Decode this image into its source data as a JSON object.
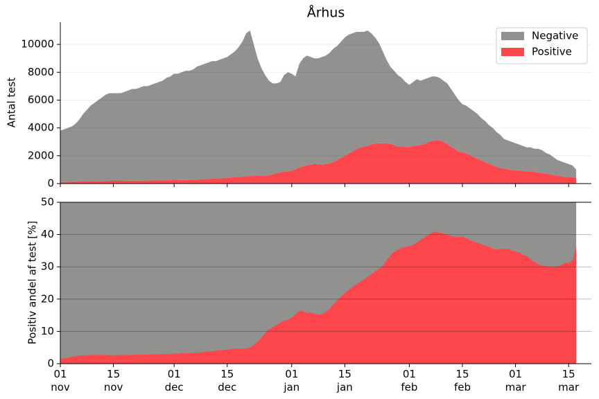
{
  "chart_data": [
    {
      "type": "area",
      "stacked": true,
      "title": "Århus",
      "ylabel": "Antal test",
      "ylim": [
        0,
        11600
      ],
      "yticks": [
        0,
        2000,
        4000,
        6000,
        8000,
        10000
      ],
      "grid": true,
      "legend": "upper right",
      "series": [
        {
          "name": "Negative",
          "color": "#91928f",
          "values": [
            3700,
            3790,
            3880,
            3970,
            4160,
            4450,
            4840,
            5130,
            5420,
            5620,
            5810,
            6010,
            6210,
            6300,
            6300,
            6300,
            6300,
            6400,
            6490,
            6590,
            6590,
            6690,
            6780,
            6780,
            6880,
            6970,
            7070,
            7170,
            7360,
            7460,
            7650,
            7650,
            7740,
            7840,
            7830,
            7920,
            8110,
            8200,
            8280,
            8370,
            8450,
            8440,
            8520,
            8600,
            8680,
            8860,
            9040,
            9320,
            9700,
            10280,
            10460,
            9450,
            8450,
            7750,
            7240,
            6800,
            6520,
            6460,
            6500,
            6950,
            7120,
            6960,
            6680,
            7450,
            7750,
            7880,
            7720,
            7580,
            7600,
            7720,
            7800,
            7940,
            8140,
            8200,
            8350,
            8500,
            8550,
            8500,
            8450,
            8320,
            8250,
            8280,
            7980,
            7620,
            7200,
            6600,
            6020,
            5530,
            5350,
            5150,
            4920,
            4650,
            4480,
            4600,
            4750,
            4640,
            4650,
            4620,
            4650,
            4580,
            4500,
            4400,
            4350,
            4150,
            3920,
            3700,
            3450,
            3420,
            3350,
            3300,
            3220,
            3050,
            2950,
            2780,
            2700,
            2500,
            2380,
            2120,
            2070,
            2020,
            1950,
            1870,
            1790,
            1720,
            1740,
            1660,
            1700,
            1640,
            1480,
            1420,
            1280,
            1130,
            1080,
            1010,
            920,
            840,
            620
          ]
        },
        {
          "name": "Positive",
          "color": "#fe474c",
          "values": [
            100,
            110,
            120,
            130,
            140,
            150,
            160,
            170,
            180,
            180,
            190,
            190,
            190,
            200,
            200,
            200,
            200,
            200,
            210,
            210,
            210,
            210,
            220,
            220,
            220,
            230,
            230,
            230,
            240,
            240,
            250,
            250,
            260,
            260,
            270,
            280,
            290,
            300,
            320,
            330,
            350,
            360,
            380,
            400,
            420,
            440,
            460,
            480,
            500,
            520,
            540,
            550,
            550,
            550,
            560,
            600,
            680,
            740,
            800,
            850,
            880,
            940,
            1020,
            1150,
            1250,
            1320,
            1380,
            1420,
            1400,
            1380,
            1400,
            1460,
            1560,
            1700,
            1850,
            2000,
            2150,
            2300,
            2450,
            2580,
            2650,
            2720,
            2820,
            2880,
            2900,
            2900,
            2880,
            2870,
            2750,
            2650,
            2680,
            2650,
            2620,
            2700,
            2750,
            2760,
            2850,
            2980,
            3050,
            3120,
            3100,
            3000,
            2850,
            2650,
            2480,
            2300,
            2250,
            2180,
            2050,
            1900,
            1780,
            1650,
            1550,
            1420,
            1300,
            1200,
            1120,
            1080,
            1030,
            980,
            950,
            930,
            910,
            880,
            860,
            840,
            800,
            760,
            720,
            680,
            620,
            570,
            520,
            490,
            480,
            460,
            380
          ]
        }
      ]
    },
    {
      "type": "area",
      "ylabel": "Positiv andel af test [%]",
      "ylim": [
        0,
        50
      ],
      "yticks": [
        0,
        10,
        20,
        30,
        40,
        50
      ],
      "grid": true,
      "categories": [
        "01 nov",
        null,
        null,
        null,
        null,
        null,
        null,
        null,
        null,
        null,
        null,
        null,
        null,
        null,
        "15 nov",
        null,
        null,
        null,
        null,
        null,
        null,
        null,
        null,
        null,
        null,
        null,
        null,
        null,
        null,
        null,
        "01 dec",
        null,
        null,
        null,
        null,
        null,
        null,
        null,
        null,
        null,
        null,
        null,
        null,
        null,
        "15 dec",
        null,
        null,
        null,
        null,
        null,
        null,
        null,
        null,
        null,
        null,
        null,
        null,
        null,
        null,
        null,
        null,
        "01 jan",
        null,
        null,
        null,
        null,
        null,
        null,
        null,
        null,
        null,
        null,
        null,
        null,
        null,
        "15 jan",
        null,
        null,
        null,
        null,
        null,
        null,
        null,
        null,
        null,
        null,
        null,
        null,
        null,
        null,
        null,
        null,
        "01 feb",
        null,
        null,
        null,
        null,
        null,
        null,
        null,
        null,
        null,
        null,
        null,
        null,
        null,
        "15 feb",
        null,
        null,
        null,
        null,
        null,
        null,
        null,
        null,
        null,
        null,
        null,
        null,
        null,
        "01 mar",
        null,
        null,
        null,
        null,
        null,
        null,
        null,
        null,
        null,
        null,
        null,
        null,
        null,
        "15 mar",
        null,
        null
      ],
      "series": [
        {
          "name": "Positive",
          "color": "#fe474c",
          "values": [
            1.5,
            1.7,
            1.9,
            2.1,
            2.3,
            2.5,
            2.6,
            2.6,
            2.7,
            2.7,
            2.7,
            2.7,
            2.7,
            2.6,
            2.6,
            2.6,
            2.7,
            2.7,
            2.7,
            2.7,
            2.8,
            2.8,
            2.8,
            2.8,
            2.9,
            2.9,
            2.9,
            3.0,
            3.0,
            3.0,
            3.1,
            3.1,
            3.2,
            3.2,
            3.3,
            3.3,
            3.4,
            3.5,
            3.6,
            3.8,
            3.9,
            4.0,
            4.1,
            4.2,
            4.3,
            4.5,
            4.6,
            4.6,
            4.6,
            4.7,
            5.0,
            5.8,
            6.8,
            8.0,
            9.5,
            10.7,
            11.3,
            12.0,
            12.8,
            13.3,
            13.6,
            14.3,
            15.2,
            16.4,
            16.3,
            15.7,
            15.8,
            15.5,
            15.2,
            15.4,
            16.0,
            17.0,
            18.3,
            19.6,
            20.8,
            21.8,
            22.8,
            23.7,
            24.6,
            25.3,
            26.0,
            26.8,
            27.7,
            28.6,
            29.4,
            30.3,
            32.0,
            33.5,
            34.7,
            35.3,
            35.8,
            36.2,
            36.4,
            36.8,
            37.5,
            38.3,
            39.2,
            39.9,
            40.6,
            40.9,
            40.7,
            40.3,
            39.9,
            39.6,
            39.3,
            39.2,
            39.3,
            38.9,
            38.3,
            37.8,
            37.4,
            37.0,
            36.6,
            36.2,
            35.6,
            35.4,
            35.6,
            35.5,
            35.6,
            35.1,
            34.7,
            34.5,
            33.7,
            33.3,
            32.3,
            31.5,
            30.8,
            30.3,
            30.2,
            30.1,
            30.0,
            30.1,
            30.5,
            31.2,
            31.3,
            31.8,
            36.5
          ]
        }
      ]
    }
  ]
}
